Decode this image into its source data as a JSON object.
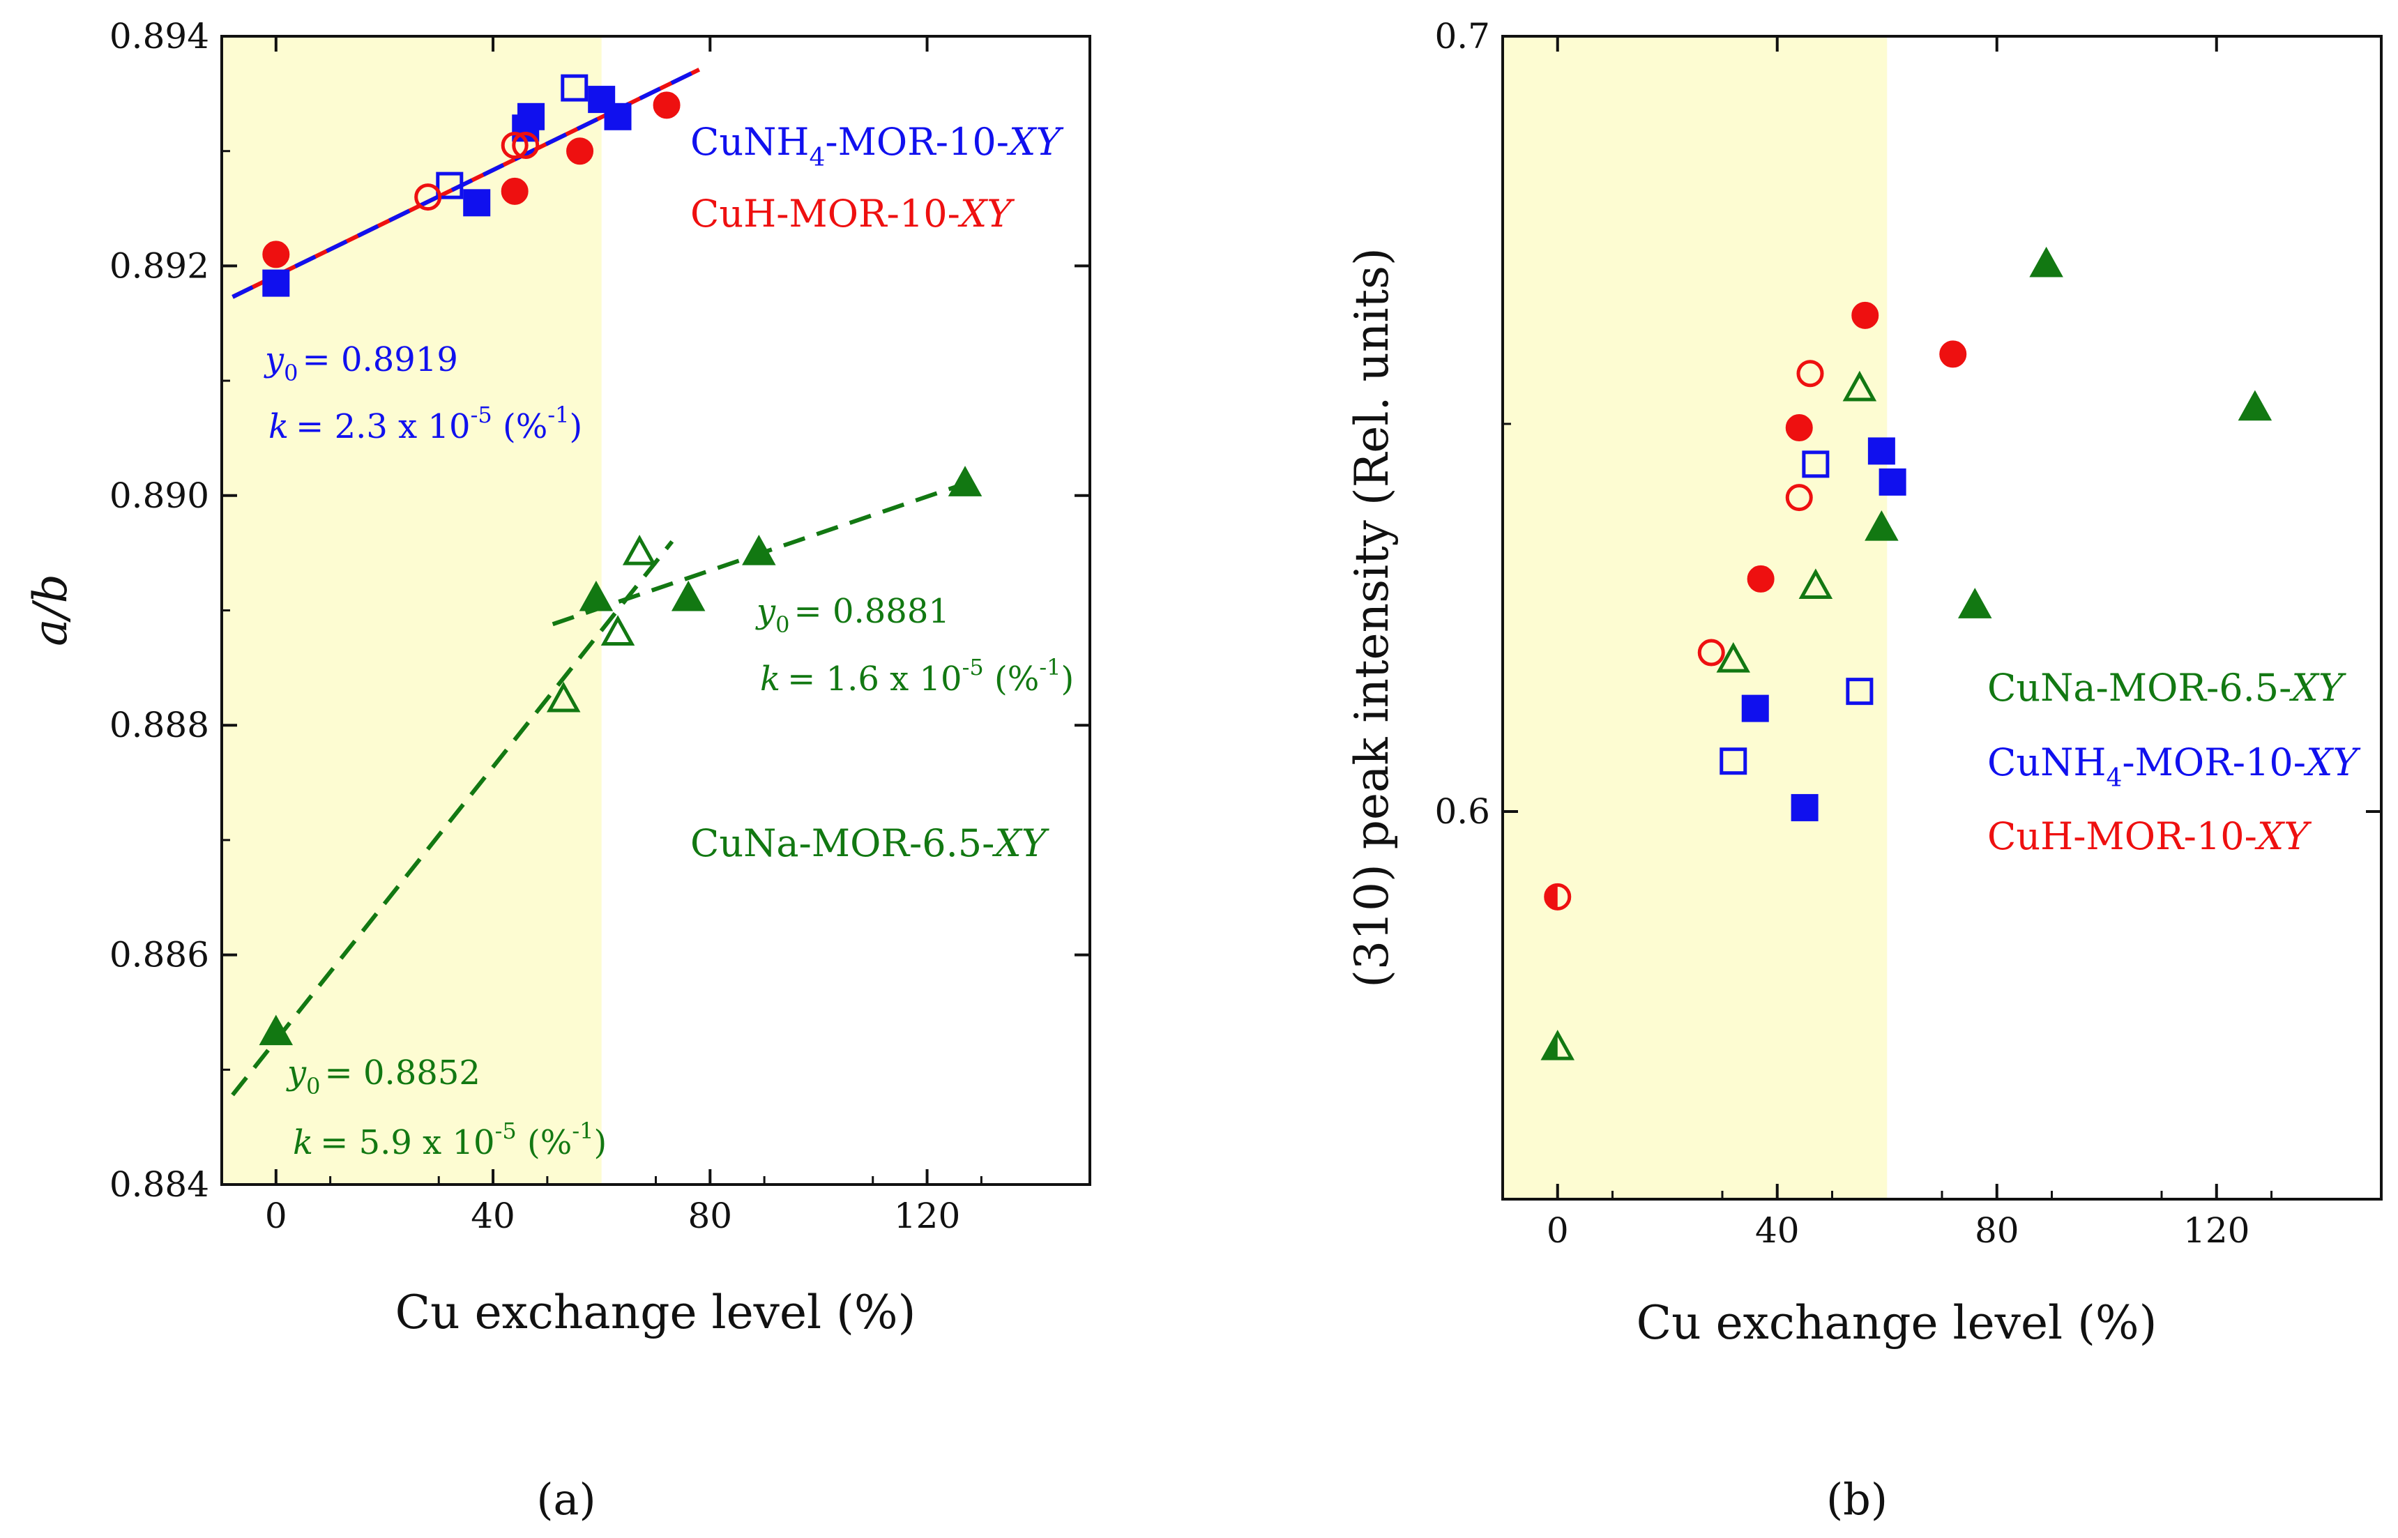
{
  "chart_data": [
    {
      "panel": "(a)",
      "type": "scatter",
      "xlabel": "Cu exchange level (%)",
      "ylabel": "a/b",
      "xlim": [
        -10,
        150
      ],
      "ylim": [
        0.884,
        0.894
      ],
      "xticks": [
        0,
        40,
        80,
        120
      ],
      "xtick_labels": [
        "0",
        "40",
        "80",
        "120"
      ],
      "yticks": [
        0.884,
        0.886,
        0.888,
        0.89,
        0.892,
        0.894
      ],
      "ytick_labels": [
        "0.884",
        "0.886",
        "0.888",
        "0.890",
        "0.892",
        "0.894"
      ],
      "shaded_region_x": [
        -10,
        60
      ],
      "shade_color": "#fdfcd2",
      "series": [
        {
          "name": "CuNH4-MOR-10-XY",
          "label_main": "CuNH",
          "label_sub": "4",
          "label_rest": "-MOR-10-",
          "label_italic": "XY",
          "color": "#1010ee",
          "marker": "square",
          "filled_points": [
            [
              0,
              0.89185
            ],
            [
              37,
              0.89255
            ],
            [
              46,
              0.8932
            ],
            [
              47,
              0.8933
            ],
            [
              60,
              0.89345
            ],
            [
              63,
              0.8933
            ]
          ],
          "open_points": [
            [
              32,
              0.8927
            ],
            [
              55,
              0.89355
            ]
          ]
        },
        {
          "name": "CuH-MOR-10-XY",
          "label_main": "CuH-MOR-10-",
          "label_italic": "XY",
          "color": "#ee1010",
          "marker": "circle",
          "filled_points": [
            [
              0,
              0.8921
            ],
            [
              44,
              0.89265
            ],
            [
              56,
              0.893
            ],
            [
              72,
              0.8934
            ]
          ],
          "open_points": [
            [
              28,
              0.8926
            ],
            [
              44,
              0.89305
            ],
            [
              46,
              0.89305
            ]
          ]
        },
        {
          "name": "CuNa-MOR-6.5-XY",
          "label_main": "CuNa-MOR-6.5-",
          "label_italic": "XY",
          "color": "#127812",
          "marker": "triangle",
          "filled_points": [
            [
              0,
              0.88532
            ],
            [
              59,
              0.8891
            ],
            [
              76,
              0.8891
            ],
            [
              89,
              0.8895
            ],
            [
              127,
              0.8901
            ]
          ],
          "open_points": [
            [
              53,
              0.88822
            ],
            [
              63,
              0.8888
            ],
            [
              67,
              0.8895
            ]
          ]
        }
      ],
      "fits": [
        {
          "name": "fit-cuh",
          "color": "#ee1010",
          "style": "solid",
          "x": [
            -8,
            78
          ],
          "y": [
            0.89173,
            0.89371
          ]
        },
        {
          "name": "fit-cunh4",
          "color": "#1010ee",
          "style": "dashed",
          "x": [
            -8,
            78
          ],
          "y": [
            0.89173,
            0.89371
          ]
        },
        {
          "name": "fit-cuna-low",
          "color": "#127812",
          "style": "dashed",
          "x": [
            -8,
            73
          ],
          "y": [
            0.88478,
            0.8896
          ]
        },
        {
          "name": "fit-cuna-high",
          "color": "#127812",
          "style": "dashed",
          "x": [
            51,
            128
          ],
          "y": [
            0.88888,
            0.89012
          ]
        }
      ],
      "annotations": [
        {
          "name": "y0-cunh4",
          "color": "#1010ee",
          "italic": "y",
          "sub": "0",
          "text": "= 0.8919"
        },
        {
          "name": "k-cunh4",
          "color": "#1010ee",
          "italic": "k",
          "text": "= 2.3 x 10",
          "sup": "-5",
          "text2": " (%",
          "sup2": "-1",
          "text3": ")"
        },
        {
          "name": "y0-cuna-high",
          "color": "#127812",
          "italic": "y",
          "sub": "0",
          "text": "= 0.8881"
        },
        {
          "name": "k-cuna-high",
          "color": "#127812",
          "italic": "k",
          "text": "= 1.6 x 10",
          "sup": "-5",
          "text2": " (%",
          "sup2": "-1",
          "text3": ")"
        },
        {
          "name": "y0-cuna-low",
          "color": "#127812",
          "italic": "y",
          "sub": "0",
          "text": "= 0.8852"
        },
        {
          "name": "k-cuna-low",
          "color": "#127812",
          "italic": "k",
          "text": "= 5.9 x 10",
          "sup": "-5",
          "text2": " (%",
          "sup2": "-1",
          "text3": ")"
        }
      ]
    },
    {
      "panel": "(b)",
      "type": "scatter",
      "xlabel": "Cu exchange level (%)",
      "ylabel": "(310) peak intensity (Rel. units)",
      "xlim": [
        -10,
        150
      ],
      "ylim": [
        0.55,
        0.7
      ],
      "xticks": [
        0,
        40,
        80,
        120
      ],
      "xtick_labels": [
        "0",
        "40",
        "80",
        "120"
      ],
      "yticks": [
        0.6,
        0.7
      ],
      "ytick_labels": [
        "0.6",
        "0.7"
      ],
      "shaded_region_x": [
        -10,
        60
      ],
      "shade_color": "#fdfcd2",
      "series": [
        {
          "name": "CuNa-MOR-6.5-XY",
          "label_main": "CuNa-MOR-6.5-",
          "label_italic": "XY",
          "color": "#127812",
          "marker": "triangle",
          "filled_points": [
            [
              59,
              0.6365
            ],
            [
              76,
              0.6265
            ],
            [
              89,
              0.6705
            ],
            [
              127,
              0.652
            ]
          ],
          "open_points": [
            [
              32,
              0.6195
            ],
            [
              47,
              0.629
            ],
            [
              55,
              0.6545
            ]
          ],
          "half_points": [
            [
              0,
              0.5695
            ]
          ]
        },
        {
          "name": "CuNH4-MOR-10-XY",
          "label_main": "CuNH",
          "label_sub": "4",
          "label_rest": "-MOR-10-",
          "label_italic": "XY",
          "color": "#1010ee",
          "marker": "square",
          "filled_points": [
            [
              36,
              0.6133
            ],
            [
              45,
              0.6005
            ],
            [
              59,
              0.6465
            ],
            [
              61,
              0.6425
            ]
          ],
          "open_points": [
            [
              32,
              0.6065
            ],
            [
              47,
              0.6448
            ],
            [
              55,
              0.6155
            ]
          ]
        },
        {
          "name": "CuH-MOR-10-XY",
          "label_main": "CuH-MOR-10-",
          "label_italic": "XY",
          "color": "#ee1010",
          "marker": "circle",
          "filled_points": [
            [
              37,
              0.63
            ],
            [
              44,
              0.6495
            ],
            [
              56,
              0.664
            ],
            [
              72,
              0.659
            ]
          ],
          "open_points": [
            [
              28,
              0.6205
            ],
            [
              44,
              0.6405
            ],
            [
              46,
              0.6565
            ]
          ],
          "half_points": [
            [
              0,
              0.589
            ]
          ]
        }
      ]
    }
  ]
}
